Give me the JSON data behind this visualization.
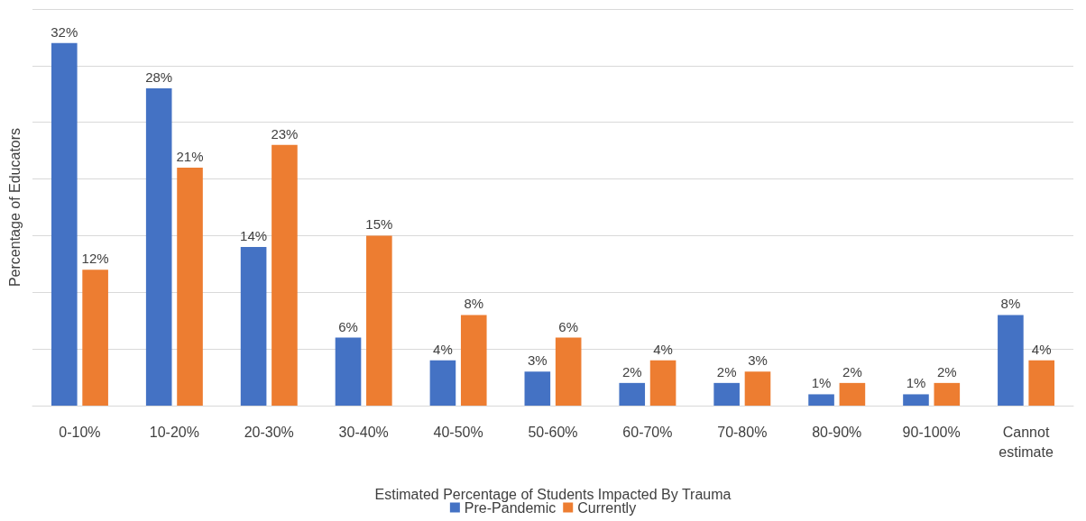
{
  "chart_data": {
    "type": "bar",
    "xlabel": "Estimated Percentage of Students Impacted By Trauma",
    "ylabel": "Percentage of Educators",
    "categories": [
      "0-10%",
      "10-20%",
      "20-30%",
      "30-40%",
      "40-50%",
      "50-60%",
      "60-70%",
      "70-80%",
      "80-90%",
      "90-100%",
      "Cannot\nestimate"
    ],
    "series": [
      {
        "name": "Pre-Pandemic",
        "color": "#4472c4",
        "values": [
          32,
          28,
          14,
          6,
          4,
          3,
          2,
          2,
          1,
          1,
          8
        ],
        "value_labels": [
          "32%",
          "28%",
          "14%",
          "6%",
          "4%",
          "3%",
          "2%",
          "2%",
          "1%",
          "1%",
          "8%"
        ]
      },
      {
        "name": "Currently",
        "color": "#ed7d31",
        "values": [
          12,
          21,
          23,
          15,
          8,
          6,
          4,
          3,
          2,
          2,
          4
        ],
        "value_labels": [
          "12%",
          "21%",
          "23%",
          "15%",
          "8%",
          "6%",
          "4%",
          "3%",
          "2%",
          "2%",
          "4%"
        ]
      }
    ],
    "ylim": [
      0,
      35
    ],
    "yticks": [
      {
        "value": 0,
        "label": null
      },
      {
        "value": 5,
        "label": null
      },
      {
        "value": 10,
        "label": null
      },
      {
        "value": 15,
        "label": null
      },
      {
        "value": 20,
        "label": null
      },
      {
        "value": 25,
        "label": null
      },
      {
        "value": 30,
        "label": null
      },
      {
        "value": 35,
        "label": null
      }
    ],
    "grid": "y",
    "legend": "bottom",
    "tick_labels": "x"
  }
}
